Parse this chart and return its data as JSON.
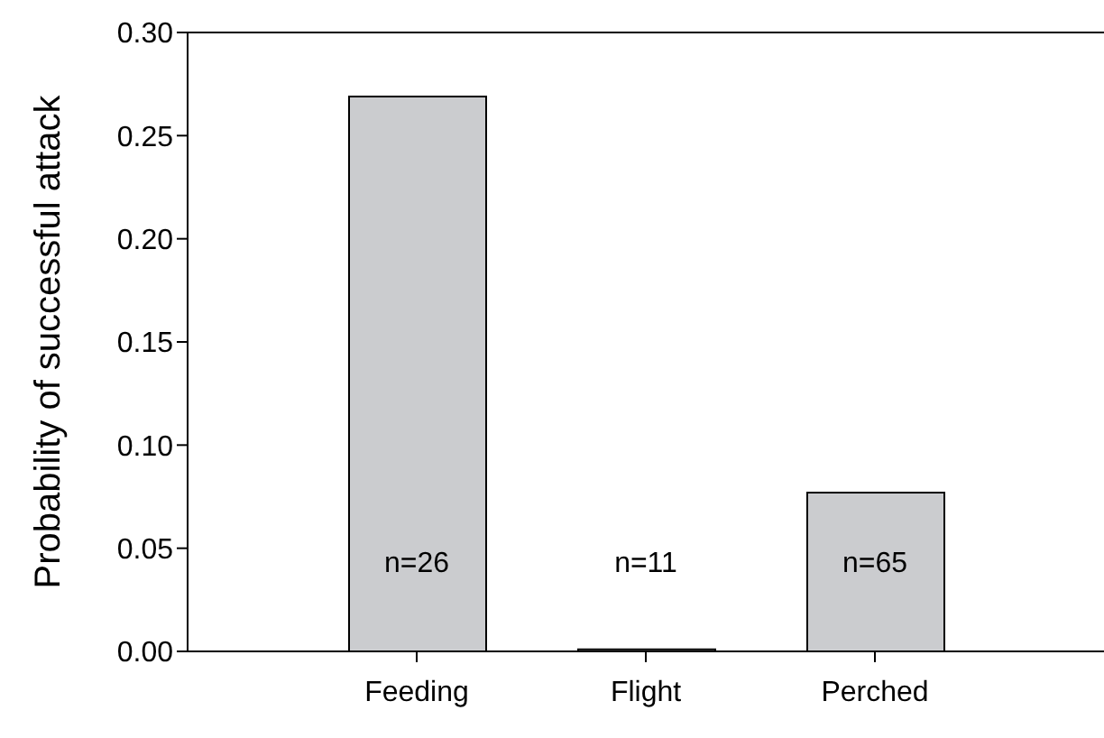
{
  "chart_data": {
    "type": "bar",
    "ylabel": "Probability of successful attack",
    "categories": [
      "Feeding",
      "Flight",
      "Perched"
    ],
    "values": [
      0.269,
      0.001,
      0.077
    ],
    "color": "#cbcccf",
    "ylim": [
      0,
      0.3
    ],
    "yticks": [
      {
        "value": 0,
        "label": "0.00"
      },
      {
        "value": 0.05,
        "label": "0.05"
      },
      {
        "value": 0.1,
        "label": "0.10"
      },
      {
        "value": 0.15,
        "label": "0.15"
      },
      {
        "value": 0.2,
        "label": "0.20"
      },
      {
        "value": 0.25,
        "label": "0.25"
      },
      {
        "value": 0.3,
        "label": "0.30"
      }
    ],
    "grid": false,
    "legend": false,
    "annotations": [
      "n=26",
      "n=11",
      "n=65"
    ]
  }
}
